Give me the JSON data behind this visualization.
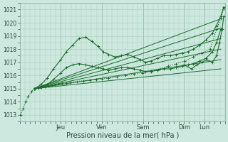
{
  "background_color": "#cce8df",
  "plot_bg_color": "#cce8df",
  "grid_color": "#aaccbb",
  "line_color": "#1a6b2a",
  "xlabel": "Pression niveau de la mer( hPa )",
  "ylim": [
    1012.5,
    1021.5
  ],
  "yticks": [
    1013,
    1014,
    1015,
    1016,
    1017,
    1018,
    1019,
    1020,
    1021
  ],
  "xlim": [
    0.0,
    4.85
  ],
  "day_tick_pos": [
    0.97,
    1.94,
    2.91,
    3.88,
    4.36
  ],
  "day_tick_labels": [
    "Jeu",
    "Ven",
    "Sam",
    "Dim",
    "Lun"
  ],
  "series": [
    {
      "x": [
        0.02,
        0.08,
        0.14,
        0.2,
        0.28,
        0.36,
        0.44,
        0.52,
        0.6,
        0.68,
        0.76,
        0.84,
        0.92,
        1.0,
        1.1,
        1.2,
        1.35,
        1.5,
        1.65,
        1.8,
        1.95,
        2.1,
        2.3,
        2.5,
        2.7,
        2.9,
        3.1,
        3.3,
        3.5,
        3.7,
        3.9,
        4.1,
        4.3,
        4.5,
        4.65,
        4.75,
        4.82
      ],
      "y": [
        1013.0,
        1013.5,
        1014.0,
        1014.4,
        1014.8,
        1015.0,
        1015.05,
        1015.1,
        1015.15,
        1015.2,
        1015.25,
        1015.3,
        1015.35,
        1015.4,
        1015.45,
        1015.5,
        1015.55,
        1015.6,
        1015.65,
        1015.7,
        1015.75,
        1015.8,
        1015.9,
        1016.0,
        1016.1,
        1016.2,
        1016.35,
        1016.5,
        1016.7,
        1016.9,
        1017.1,
        1017.4,
        1017.7,
        1018.0,
        1019.5,
        1020.3,
        1021.1
      ],
      "style": "dotted",
      "marker": "+"
    },
    {
      "x": [
        0.35,
        4.75
      ],
      "y": [
        1015.0,
        1020.3
      ],
      "style": "solid",
      "marker": null
    },
    {
      "x": [
        0.35,
        4.75
      ],
      "y": [
        1015.0,
        1019.6
      ],
      "style": "solid",
      "marker": null
    },
    {
      "x": [
        0.35,
        4.75
      ],
      "y": [
        1015.0,
        1018.8
      ],
      "style": "solid",
      "marker": null
    },
    {
      "x": [
        0.35,
        4.75
      ],
      "y": [
        1015.0,
        1018.0
      ],
      "style": "solid",
      "marker": null
    },
    {
      "x": [
        0.35,
        4.75
      ],
      "y": [
        1015.0,
        1017.2
      ],
      "style": "solid",
      "marker": null
    },
    {
      "x": [
        0.35,
        4.75
      ],
      "y": [
        1015.0,
        1016.5
      ],
      "style": "solid",
      "marker": null
    },
    {
      "x": [
        0.35,
        0.5,
        0.65,
        0.8,
        0.97,
        1.1,
        1.25,
        1.4,
        1.55,
        1.7,
        1.85,
        1.97,
        2.1,
        2.25,
        2.4,
        2.55,
        2.7,
        2.85,
        2.97,
        3.1,
        3.25,
        3.4,
        3.55,
        3.7,
        3.85,
        3.97,
        4.1,
        4.25,
        4.4,
        4.55,
        4.65,
        4.75,
        4.82
      ],
      "y": [
        1015.0,
        1015.3,
        1015.8,
        1016.5,
        1017.2,
        1017.8,
        1018.3,
        1018.8,
        1018.9,
        1018.6,
        1018.2,
        1017.8,
        1017.6,
        1017.4,
        1017.5,
        1017.6,
        1017.4,
        1017.2,
        1017.0,
        1017.1,
        1017.3,
        1017.5,
        1017.5,
        1017.6,
        1017.7,
        1017.8,
        1018.0,
        1018.3,
        1018.7,
        1019.2,
        1019.8,
        1020.5,
        1021.2
      ],
      "style": "solid",
      "marker": "+"
    },
    {
      "x": [
        0.35,
        0.5,
        0.65,
        0.8,
        0.97,
        1.1,
        1.25,
        1.4,
        1.55,
        1.7,
        1.85,
        1.97,
        2.1,
        2.25,
        2.4,
        2.55,
        2.7,
        2.85,
        2.97,
        3.1,
        3.25,
        3.4,
        3.55,
        3.7,
        3.85,
        3.97,
        4.1,
        4.25,
        4.4,
        4.55,
        4.65,
        4.75
      ],
      "y": [
        1015.0,
        1015.1,
        1015.3,
        1015.7,
        1016.2,
        1016.6,
        1016.8,
        1016.9,
        1016.8,
        1016.7,
        1016.6,
        1016.5,
        1016.4,
        1016.5,
        1016.6,
        1016.6,
        1016.5,
        1016.4,
        1016.3,
        1016.3,
        1016.4,
        1016.5,
        1016.5,
        1016.6,
        1016.7,
        1016.8,
        1016.9,
        1017.1,
        1017.3,
        1017.8,
        1018.5,
        1019.5
      ],
      "style": "solid",
      "marker": "+"
    },
    {
      "x": [
        3.88,
        4.06,
        4.18,
        4.3,
        4.42,
        4.55,
        4.65,
        4.72,
        4.78,
        4.82
      ],
      "y": [
        1016.8,
        1016.5,
        1016.8,
        1017.0,
        1017.2,
        1017.0,
        1017.5,
        1018.5,
        1019.5,
        1020.5
      ],
      "style": "solid",
      "marker": "+"
    }
  ]
}
